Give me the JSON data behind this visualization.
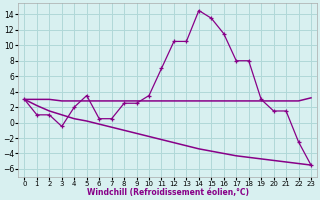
{
  "xlabel": "Windchill (Refroidissement éolien,°C)",
  "x": [
    0,
    1,
    2,
    3,
    4,
    5,
    6,
    7,
    8,
    9,
    10,
    11,
    12,
    13,
    14,
    15,
    16,
    17,
    18,
    19,
    20,
    21,
    22,
    23
  ],
  "line1": [
    3.0,
    1.0,
    1.0,
    -0.5,
    2.0,
    3.5,
    0.5,
    0.5,
    2.5,
    2.5,
    3.5,
    7.0,
    10.5,
    10.5,
    14.5,
    13.5,
    11.5,
    8.0,
    8.0,
    3.0,
    1.5,
    1.5,
    -2.5,
    -5.5
  ],
  "line2": [
    3.0,
    3.0,
    3.0,
    2.8,
    2.8,
    2.8,
    2.8,
    2.8,
    2.8,
    2.8,
    2.8,
    2.8,
    2.8,
    2.8,
    2.8,
    2.8,
    2.8,
    2.8,
    2.8,
    2.8,
    2.8,
    2.8,
    2.8,
    3.2
  ],
  "line3": [
    3.0,
    2.2,
    1.5,
    1.0,
    0.5,
    0.2,
    -0.2,
    -0.6,
    -1.0,
    -1.4,
    -1.8,
    -2.2,
    -2.6,
    -3.0,
    -3.4,
    -3.7,
    -4.0,
    -4.3,
    -4.5,
    -4.7,
    -4.9,
    -5.1,
    -5.3,
    -5.5
  ],
  "bg_color": "#d8f0f0",
  "grid_color": "#b0d8d8",
  "line_color": "#880088",
  "ylim": [
    -7,
    15.5
  ],
  "yticks": [
    -6,
    -4,
    -2,
    0,
    2,
    4,
    6,
    8,
    10,
    12,
    14
  ],
  "xlim": [
    -0.5,
    23.5
  ]
}
